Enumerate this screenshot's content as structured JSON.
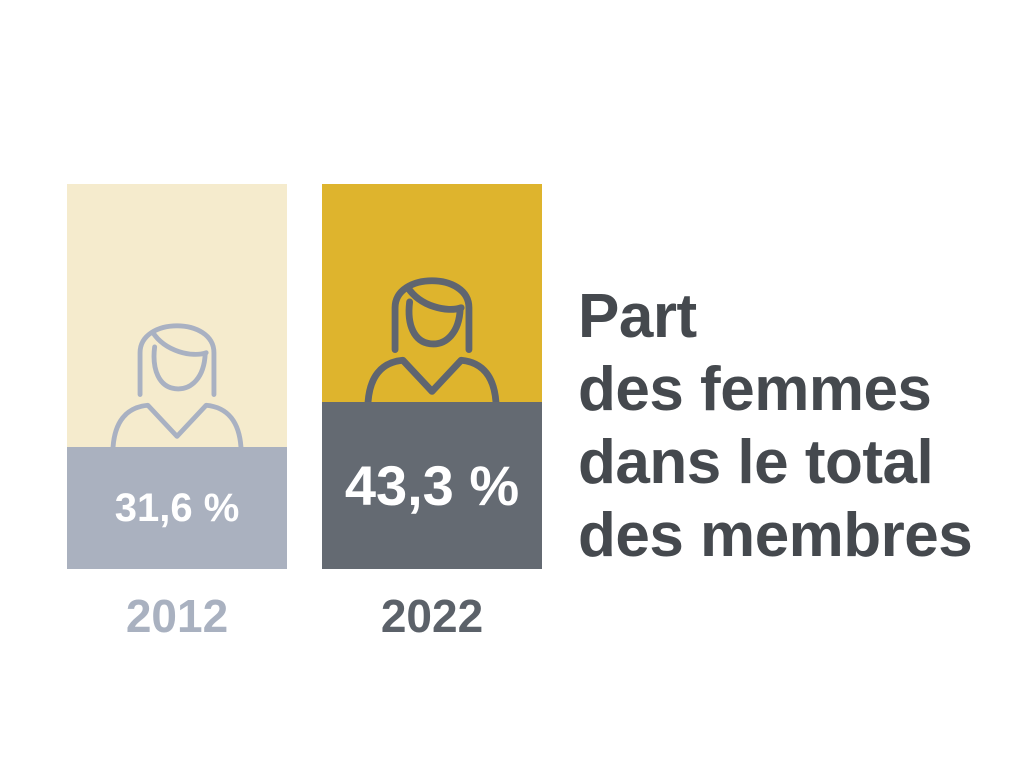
{
  "chart_data": {
    "type": "bar",
    "title": "Part\ndes femmes\ndans le total\ndes membres",
    "categories": [
      "2012",
      "2022"
    ],
    "values": [
      31.6,
      43.3
    ],
    "value_labels": [
      "31,6 %",
      "43,3 %"
    ],
    "unit": "%",
    "ylim": [
      0,
      100
    ],
    "grid": false,
    "legend_position": "none",
    "orientation": "vertical",
    "pictogram": "woman-icon"
  },
  "bars": [
    {
      "year": "2012",
      "value": 31.6,
      "value_label": "31,6 %",
      "bg_color": "#f5ebcd",
      "fill_color": "#aab1bf",
      "year_color": "#a9b1c0",
      "icon_color": "#a9b1c2",
      "icon_stroke_width": 5
    },
    {
      "year": "2022",
      "value": 43.3,
      "value_label": "43,3 %",
      "bg_color": "#deb42d",
      "fill_color": "#646a72",
      "year_color": "#5b6169",
      "icon_color": "#5f6570",
      "icon_stroke_width": 7
    }
  ],
  "colors": {
    "background": "#ffffff",
    "title_text": "#45494e",
    "value_text": "#ffffff",
    "cream": "#f5ebcd",
    "light_gray_blue": "#aab1bf",
    "gold": "#deb42d",
    "dark_slate": "#646a72"
  }
}
